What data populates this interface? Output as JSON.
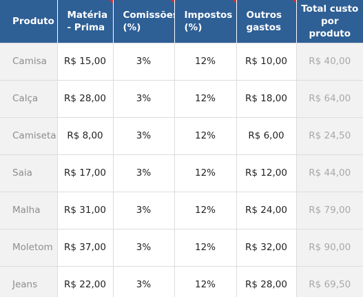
{
  "headers": [
    "Produto",
    "Matéria - Prima",
    "Comissões (%)",
    "Impostos (%)",
    "Outros gastos",
    "Total custo por produto"
  ],
  "rows": [
    {
      "produto": "Camisa",
      "materia_prima": "R$ 15,00",
      "comissoes": "3%",
      "impostos": "12%",
      "outros_gastos": "R$ 10,00",
      "total": "R$ 40,00"
    },
    {
      "produto": "Calça",
      "materia_prima": "R$ 28,00",
      "comissoes": "3%",
      "impostos": "12%",
      "outros_gastos": "R$ 18,00",
      "total": "R$ 64,00"
    },
    {
      "produto": "Camiseta",
      "materia_prima": "R$ 8,00",
      "comissoes": "3%",
      "impostos": "12%",
      "outros_gastos": "R$ 6,00",
      "total": "R$ 24,50"
    },
    {
      "produto": "Saia",
      "materia_prima": "R$ 17,00",
      "comissoes": "3%",
      "impostos": "12%",
      "outros_gastos": "R$ 12,00",
      "total": "R$ 44,00"
    },
    {
      "produto": "Malha",
      "materia_prima": "R$ 31,00",
      "comissoes": "3%",
      "impostos": "12%",
      "outros_gastos": "R$ 24,00",
      "total": "R$ 79,00"
    },
    {
      "produto": "Moletom",
      "materia_prima": "R$ 37,00",
      "comissoes": "3%",
      "impostos": "12%",
      "outros_gastos": "R$ 32,00",
      "total": "R$ 90,00"
    },
    {
      "produto": "Jeans",
      "materia_prima": "R$ 22,00",
      "comissoes": "3%",
      "impostos": "12%",
      "outros_gastos": "R$ 28,00",
      "total": "R$ 69,50"
    }
  ],
  "colors": {
    "header_bg": "#2e5f95",
    "header_text": "#ffffff",
    "label_cell_bg": "#f2f2f2",
    "comment_marker": "#d8302a"
  }
}
